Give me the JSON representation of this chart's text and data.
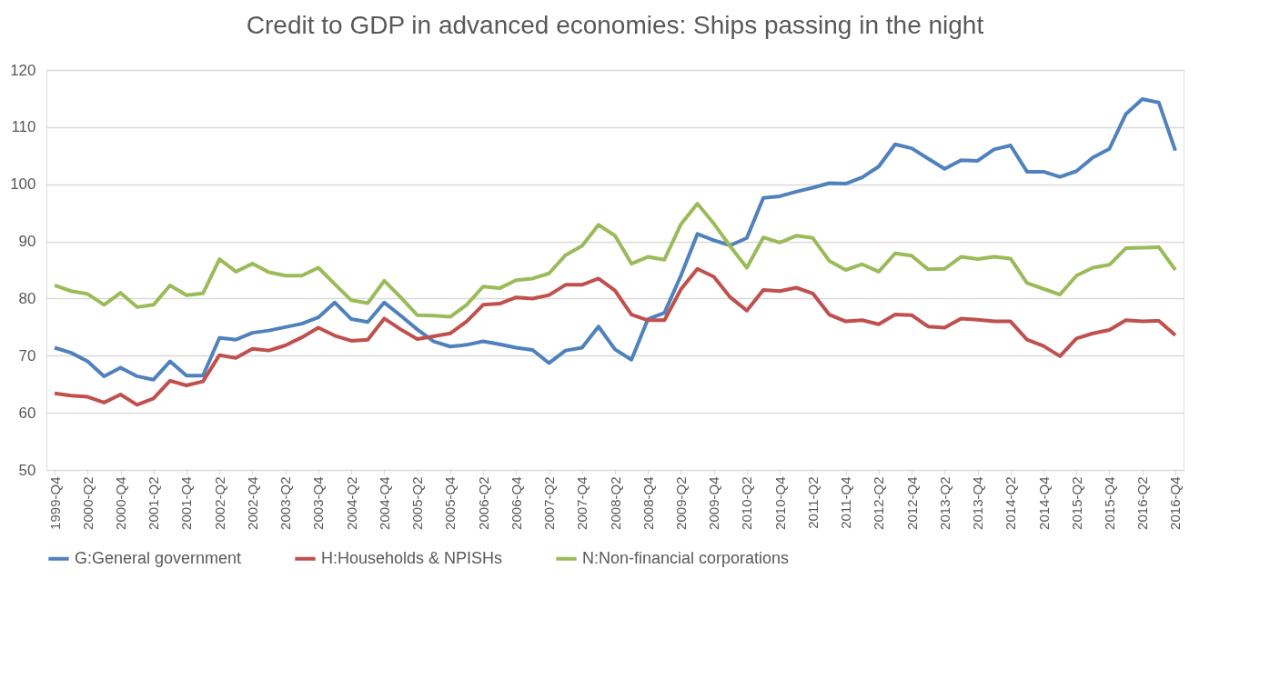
{
  "chart_data": {
    "type": "line",
    "title": "Credit to GDP in advanced economies: Ships passing in the night",
    "categories": [
      "1999-Q4",
      null,
      "2000-Q2",
      null,
      "2000-Q4",
      null,
      "2001-Q2",
      null,
      "2001-Q4",
      null,
      "2002-Q2",
      null,
      "2002-Q4",
      null,
      "2003-Q2",
      null,
      "2003-Q4",
      null,
      "2004-Q2",
      null,
      "2004-Q4",
      null,
      "2005-Q2",
      null,
      "2005-Q4",
      null,
      "2006-Q2",
      null,
      "2006-Q4",
      null,
      "2007-Q2",
      null,
      "2007-Q4",
      null,
      "2008-Q2",
      null,
      "2008-Q4",
      null,
      "2009-Q2",
      null,
      "2009-Q4",
      null,
      "2010-Q2",
      null,
      "2010-Q4",
      null,
      "2011-Q2",
      null,
      "2011-Q4",
      null,
      "2012-Q2",
      null,
      "2012-Q4",
      null,
      "2013-Q2",
      null,
      "2013-Q4",
      null,
      "2014-Q2",
      null,
      "2014-Q4",
      null,
      "2015-Q2",
      null,
      "2015-Q4",
      null,
      "2016-Q2",
      null,
      "2016-Q4"
    ],
    "series": [
      {
        "name": "G:General government",
        "color": "#4f81bd",
        "values": [
          71.4,
          70.5,
          69.0,
          66.4,
          67.9,
          66.4,
          65.8,
          69.0,
          66.5,
          66.5,
          73.1,
          72.8,
          74.0,
          74.4,
          75.0,
          75.6,
          76.7,
          79.3,
          76.4,
          75.9,
          79.3,
          77.0,
          74.6,
          72.5,
          71.6,
          71.9,
          72.5,
          72.0,
          71.4,
          71.0,
          68.7,
          70.9,
          71.4,
          75.1,
          71.1,
          69.3,
          76.4,
          77.5,
          84.0,
          91.3,
          90.2,
          89.3,
          90.6,
          97.6,
          97.9,
          98.7,
          99.4,
          100.2,
          100.1,
          101.2,
          103.1,
          107.0,
          106.3,
          104.5,
          102.7,
          104.2,
          104.1,
          106.1,
          106.8,
          102.2,
          102.2,
          101.3,
          102.3,
          104.7,
          106.2,
          112.3,
          114.9,
          114.3,
          105.9
        ]
      },
      {
        "name": "H:Households & NPISHs",
        "color": "#c0504d",
        "values": [
          63.4,
          63.0,
          62.8,
          61.8,
          63.2,
          61.4,
          62.5,
          65.6,
          64.8,
          65.5,
          70.1,
          69.6,
          71.2,
          70.9,
          71.8,
          73.2,
          74.9,
          73.5,
          72.6,
          72.8,
          76.5,
          74.6,
          72.9,
          73.4,
          73.9,
          76.0,
          78.9,
          79.1,
          80.2,
          80.0,
          80.6,
          82.4,
          82.4,
          83.5,
          81.4,
          77.2,
          76.2,
          76.2,
          81.6,
          85.2,
          83.8,
          80.2,
          77.9,
          81.5,
          81.3,
          81.9,
          80.9,
          77.2,
          76.0,
          76.2,
          75.5,
          77.2,
          77.1,
          75.1,
          74.9,
          76.5,
          76.3,
          76.0,
          76.0,
          72.8,
          71.7,
          69.9,
          73.0,
          73.9,
          74.5,
          76.2,
          76.0,
          76.1,
          73.6
        ]
      },
      {
        "name": "N:Non-financial corporations",
        "color": "#9bbb59",
        "values": [
          82.3,
          81.3,
          80.8,
          78.9,
          81.0,
          78.5,
          78.9,
          82.3,
          80.6,
          80.9,
          86.9,
          84.7,
          86.1,
          84.6,
          84.0,
          84.0,
          85.4,
          82.5,
          79.7,
          79.2,
          83.1,
          80.2,
          77.1,
          77.0,
          76.8,
          78.9,
          82.1,
          81.8,
          83.2,
          83.5,
          84.4,
          87.6,
          89.2,
          92.9,
          91.0,
          86.1,
          87.3,
          86.8,
          93.0,
          96.6,
          93.1,
          89.1,
          85.4,
          90.7,
          89.8,
          91.0,
          90.6,
          86.6,
          85.0,
          86.0,
          84.7,
          87.9,
          87.5,
          85.1,
          85.2,
          87.3,
          86.9,
          87.3,
          87.0,
          82.7,
          81.7,
          80.7,
          84.0,
          85.4,
          85.9,
          88.8,
          88.9,
          89.0,
          85.0
        ]
      }
    ],
    "ylim": [
      50,
      120
    ],
    "yticks": [
      50,
      60,
      70,
      80,
      90,
      100,
      110,
      120
    ],
    "grid": "y",
    "legend": "bottom",
    "marker": "none",
    "line_style": "solid"
  }
}
